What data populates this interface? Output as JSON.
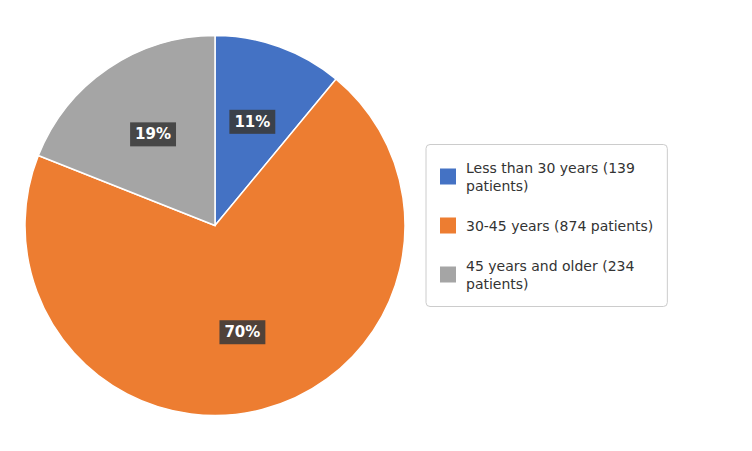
{
  "chart_data": {
    "type": "pie",
    "categories": [
      "Less than 30 years (139\npatients)",
      "30-45 years (874 patients)",
      "45 years and older (234\npatients)"
    ],
    "values": [
      11,
      70,
      19
    ],
    "value_labels": [
      "11%",
      "70%",
      "19%"
    ],
    "colors": [
      "#4472C4",
      "#ED7D31",
      "#A5A5A5"
    ],
    "data_labels": true,
    "legend": "right"
  }
}
